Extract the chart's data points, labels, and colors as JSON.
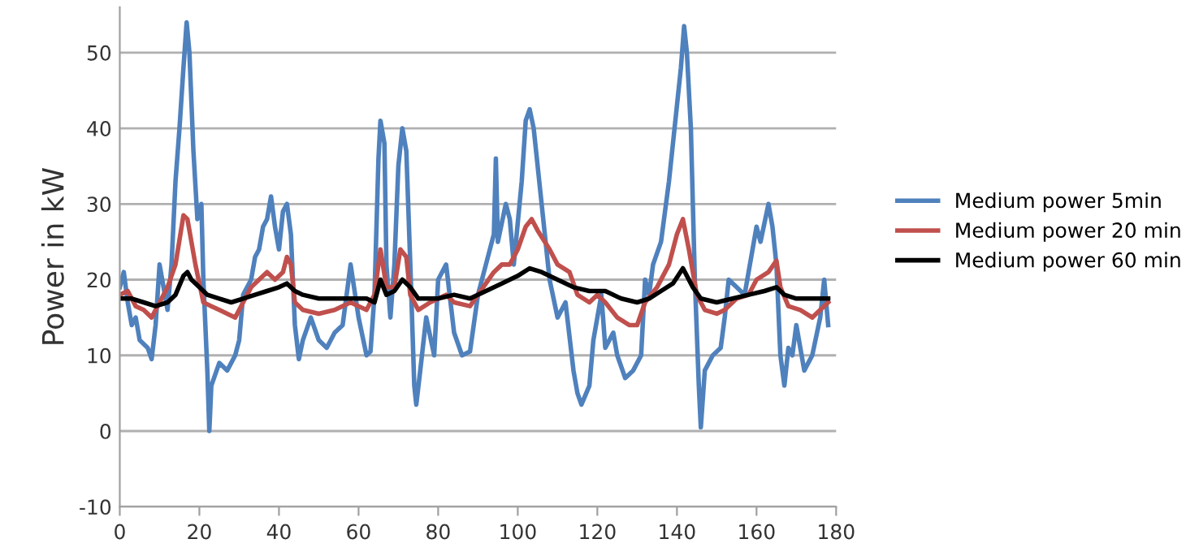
{
  "chart_data": {
    "type": "line",
    "ylabel": "Power in kW",
    "xlim": [
      0,
      180
    ],
    "xticks": [
      0,
      20,
      40,
      60,
      80,
      100,
      120,
      140,
      160,
      180
    ],
    "ylim": [
      -10,
      56
    ],
    "yticks": [
      -10,
      0,
      10,
      20,
      30,
      40,
      50
    ],
    "grid": "y",
    "legend": "right",
    "marker": "none",
    "line_style": "solid",
    "series": [
      {
        "name": "Medium power 5min",
        "color": "#4f81bd",
        "x": [
          0,
          1,
          2,
          3,
          4,
          5,
          7,
          8,
          9,
          10,
          11,
          12,
          13,
          14,
          15,
          16,
          16.8,
          17.5,
          18.5,
          19.5,
          20.5,
          21,
          22,
          22.5,
          23,
          25,
          27,
          29,
          30,
          31,
          33,
          34,
          35,
          36,
          37,
          38,
          39,
          40,
          41,
          42,
          43,
          44,
          45,
          46,
          48,
          50,
          52,
          54,
          56,
          58,
          60,
          62,
          63,
          64,
          65,
          65.5,
          66.5,
          67,
          68,
          69,
          70,
          71,
          72,
          73,
          74,
          74.5,
          75.5,
          77,
          79,
          80,
          82,
          84,
          86,
          88,
          90,
          92,
          94,
          94.5,
          95,
          97,
          98,
          99,
          101,
          102,
          103,
          104,
          106,
          108,
          110,
          112,
          114,
          115,
          116,
          118,
          119,
          121,
          122,
          124,
          125,
          127,
          129,
          131,
          132,
          133,
          134,
          136,
          138,
          140,
          141,
          141.8,
          142.5,
          143.5,
          144.5,
          145.5,
          146,
          147,
          149,
          151,
          152,
          153,
          155,
          157,
          158,
          159,
          160,
          161,
          163,
          164,
          165,
          166,
          167,
          168,
          169,
          170,
          172,
          174,
          176,
          177,
          178
        ],
        "values": [
          19,
          21,
          17,
          14,
          15,
          12,
          11,
          9.5,
          14,
          22,
          19,
          16,
          22,
          33,
          40,
          48,
          54,
          50,
          37,
          28,
          30,
          20,
          8,
          0,
          6,
          9,
          8,
          10,
          12,
          18,
          20,
          23,
          24,
          27,
          28,
          31,
          27,
          24,
          29,
          30,
          26,
          14,
          9.5,
          12,
          15,
          12,
          11,
          13,
          14,
          22,
          15,
          10,
          10.5,
          18,
          36,
          41,
          38,
          22,
          15,
          22,
          35,
          40,
          37,
          22,
          6,
          3.5,
          8,
          15,
          10,
          20,
          22,
          13,
          10,
          10.5,
          18,
          22,
          26,
          36,
          25,
          30,
          28,
          22,
          33,
          41,
          42.5,
          40,
          30,
          20,
          15,
          17,
          8,
          5,
          3.5,
          6,
          12,
          18,
          11,
          13,
          10,
          7,
          8,
          10,
          20,
          18,
          22,
          25,
          33,
          43,
          48,
          53.5,
          50,
          40,
          20,
          6,
          0.5,
          8,
          10,
          11,
          15,
          20,
          19,
          18,
          21,
          24,
          27,
          25,
          30,
          27,
          22,
          10,
          6,
          11,
          10,
          14,
          8,
          10,
          15,
          20,
          14
        ]
      },
      {
        "name": "Medium power 20 min",
        "color": "#c0504d",
        "x": [
          0,
          2,
          4,
          6,
          8,
          10,
          12,
          14,
          16,
          17,
          19,
          21,
          23,
          25,
          27,
          29,
          31,
          33,
          35,
          37,
          39,
          41,
          42,
          43,
          44,
          46,
          50,
          54,
          58,
          60,
          62,
          64,
          65.5,
          67,
          69,
          70.5,
          72,
          73,
          75,
          78,
          82,
          84,
          88,
          90,
          92,
          94,
          96,
          98,
          100,
          102,
          103.5,
          105,
          108,
          110,
          113,
          115,
          118,
          120,
          122,
          125,
          128,
          130,
          132,
          135,
          138,
          140,
          141.5,
          143,
          145,
          147,
          150,
          152,
          155,
          158,
          160,
          163,
          165,
          166,
          168,
          171,
          174,
          176,
          178
        ],
        "values": [
          18,
          18.5,
          16.5,
          16,
          15,
          17,
          19,
          22,
          28.5,
          28,
          22,
          17,
          16.5,
          16,
          15.5,
          15,
          17,
          19,
          20,
          21,
          20,
          21,
          23,
          22,
          17,
          16,
          15.5,
          16,
          17,
          16.5,
          16,
          18,
          24,
          19,
          19,
          24,
          23,
          18,
          16,
          17,
          18,
          17,
          16.5,
          18,
          19.5,
          21,
          22,
          22,
          24,
          27,
          28,
          26.5,
          24,
          22,
          21,
          18,
          17,
          18,
          17,
          15,
          14,
          14,
          17,
          19,
          22,
          26,
          28,
          24,
          18,
          16,
          15.5,
          16,
          17.5,
          18,
          20,
          21,
          22.5,
          19,
          16.5,
          16,
          15,
          16,
          17
        ]
      },
      {
        "name": "Medium power 60 min",
        "color": "#000000",
        "x": [
          0,
          3,
          6,
          9,
          12,
          14,
          16,
          17,
          18,
          20,
          22,
          25,
          28,
          31,
          34,
          37,
          40,
          42,
          44,
          46,
          50,
          54,
          58,
          62,
          64,
          65.5,
          67,
          69,
          71,
          73,
          75,
          80,
          84,
          88,
          92,
          96,
          100,
          103,
          106,
          110,
          114,
          118,
          122,
          126,
          130,
          133,
          136,
          139,
          141.5,
          144,
          146,
          150,
          154,
          158,
          162,
          165,
          167,
          170,
          174,
          178
        ],
        "values": [
          17.5,
          17.5,
          17,
          16.5,
          17,
          18,
          20.5,
          21,
          20,
          19,
          18,
          17.5,
          17,
          17.5,
          18,
          18.5,
          19,
          19.5,
          18.5,
          18,
          17.5,
          17.5,
          17.5,
          17.5,
          17,
          20,
          18,
          18.5,
          20,
          19,
          17.5,
          17.5,
          18,
          17.5,
          18.5,
          19.5,
          20.5,
          21.5,
          21,
          20,
          19,
          18.5,
          18.5,
          17.5,
          17,
          17.5,
          18.5,
          19.5,
          21.5,
          19,
          17.5,
          17,
          17.5,
          18,
          18.5,
          19,
          18,
          17.5,
          17.5,
          17.5
        ]
      }
    ]
  }
}
